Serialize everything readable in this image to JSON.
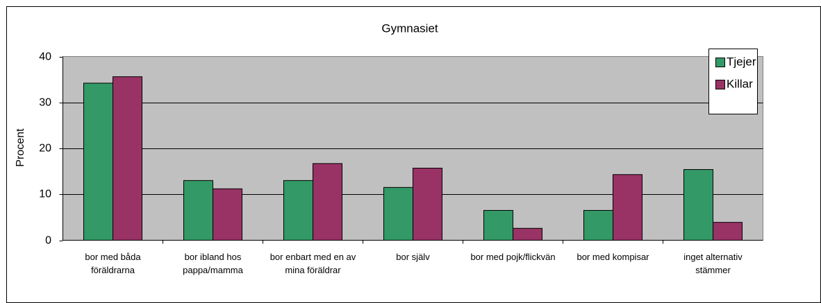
{
  "chart_data": {
    "type": "bar",
    "title": "Gymnasiet",
    "y_label": "Procent",
    "categories": [
      "bor med båda föräldrarna",
      "bor ibland hos pappa/mamma",
      "bor enbart med en av mina föräldrar",
      "bor själv",
      "bor med pojk/flickvän",
      "bor med kompisar",
      "inget alternativ stämmer"
    ],
    "series": [
      {
        "name": "Tjejer",
        "color": "#339966",
        "values": [
          34.2,
          13.0,
          13.0,
          11.5,
          6.5,
          6.5,
          15.4
        ]
      },
      {
        "name": "Killar",
        "color": "#993366",
        "values": [
          35.6,
          11.2,
          16.7,
          15.7,
          2.6,
          14.3,
          3.9
        ]
      }
    ],
    "ylim": [
      0,
      40
    ],
    "yticks": [
      0,
      10,
      20,
      30,
      40
    ],
    "grid": true,
    "legend": "top-right"
  }
}
